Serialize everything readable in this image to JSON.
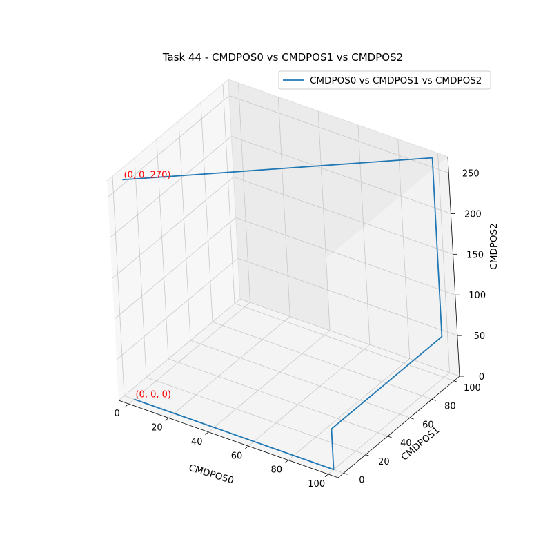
{
  "chart_data": {
    "type": "line3d",
    "title": "Task 44 - CMDPOS0 vs CMDPOS1 vs CMDPOS2",
    "xlabel": "CMDPOS0",
    "ylabel": "CMDPOS1",
    "zlabel": "CMDPOS2",
    "xlim": [
      -5,
      105
    ],
    "ylim": [
      -5,
      105
    ],
    "zlim": [
      0,
      270
    ],
    "xticks": [
      0,
      20,
      40,
      60,
      80,
      100
    ],
    "yticks": [
      0,
      20,
      40,
      60,
      80,
      100
    ],
    "zticks": [
      0,
      50,
      100,
      150,
      200,
      250
    ],
    "grid": true,
    "legend_position": "top-right",
    "series": [
      {
        "name": "CMDPOS0 vs CMDPOS1 vs CMDPOS2",
        "color": "#1f77b4",
        "x": [
          0,
          100,
          100,
          100,
          100,
          100,
          0,
          0
        ],
        "y": [
          0,
          0,
          0,
          100,
          100,
          100,
          0,
          0
        ],
        "z": [
          0,
          0,
          50,
          50,
          150,
          270,
          270,
          270
        ]
      }
    ],
    "annotations": [
      {
        "text": "(0, 0, 0)",
        "x": 0,
        "y": 0,
        "z": 0,
        "color": "#ff0000"
      },
      {
        "text": "(0, 0, 270)",
        "x": 0,
        "y": 0,
        "z": 270,
        "color": "#ff0000"
      }
    ]
  }
}
